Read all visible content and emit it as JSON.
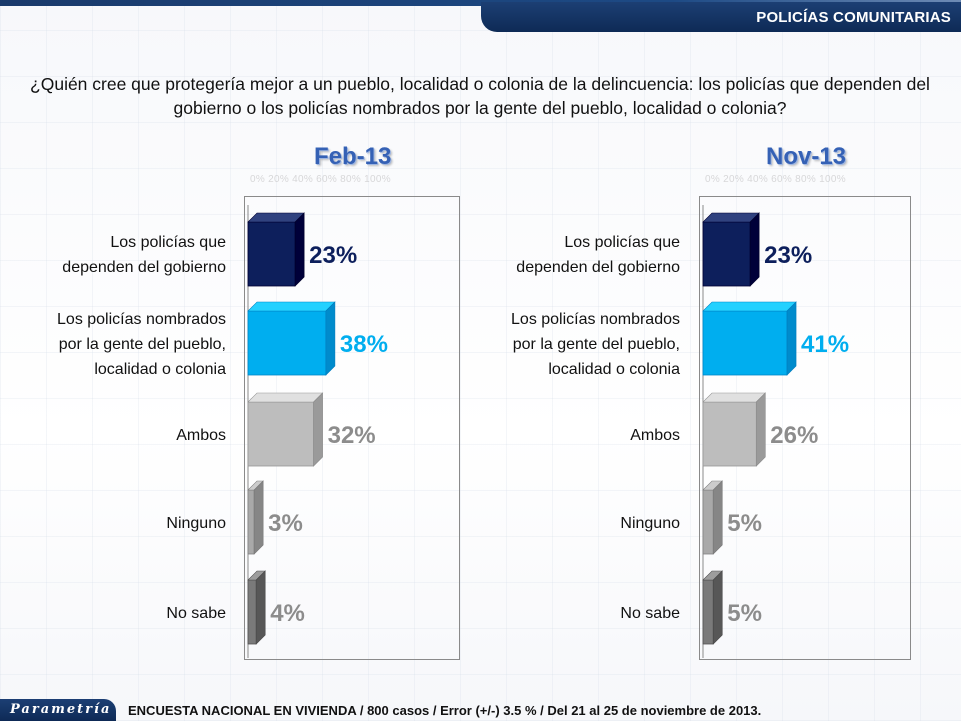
{
  "header": {
    "title": "POLICÍAS COMUNITARIAS"
  },
  "question": "¿Quién cree que protegería mejor a un pueblo, localidad o colonia de la delincuencia: los policías que dependen del gobierno o los policías nombrados por la gente del pueblo, localidad o colonia?",
  "footer": {
    "logo": "Parametría",
    "note": "ENCUESTA NACIONAL EN VIVIENDA / 800 casos / Error (+/-) 3.5 % / Del 21 al 25 de noviembre de 2013."
  },
  "axis_ticks": "0%   20%   40%   60%   80%   100%",
  "colors": {
    "dark_navy": "#0d1f5c",
    "light_blue": "#00aeef",
    "gray": "#bdbdbd",
    "mid_gray": "#a9a9a9",
    "dark_gray": "#7a7a7a"
  },
  "chart_data": [
    {
      "type": "bar",
      "title": "Feb-13",
      "categories": [
        "Los policías que dependen del gobierno",
        "Los policías nombrados por la gente del pueblo, localidad o colonia",
        "Ambos",
        "Ninguno",
        "No sabe"
      ],
      "category_lines": [
        [
          "Los policías que",
          "dependen del gobierno"
        ],
        [
          "Los policías nombrados",
          "por la gente del pueblo,",
          "localidad o colonia"
        ],
        [
          "Ambos"
        ],
        [
          "Ninguno"
        ],
        [
          "No sabe"
        ]
      ],
      "values": [
        23,
        38,
        32,
        3,
        4
      ],
      "labels": [
        "23%",
        "38%",
        "32%",
        "3%",
        "4%"
      ],
      "xlim": [
        0,
        100
      ],
      "orientation": "horizontal"
    },
    {
      "type": "bar",
      "title": "Nov-13",
      "categories": [
        "Los policías que dependen del gobierno",
        "Los policías nombrados por la gente del pueblo, localidad o colonia",
        "Ambos",
        "Ninguno",
        "No sabe"
      ],
      "category_lines": [
        [
          "Los policías que",
          "dependen del gobierno"
        ],
        [
          "Los policías nombrados",
          "por la gente del pueblo,",
          "localidad o colonia"
        ],
        [
          "Ambos"
        ],
        [
          "Ninguno"
        ],
        [
          "No sabe"
        ]
      ],
      "values": [
        23,
        41,
        26,
        5,
        5
      ],
      "labels": [
        "23%",
        "41%",
        "26%",
        "5%",
        "5%"
      ],
      "xlim": [
        0,
        100
      ],
      "orientation": "horizontal"
    }
  ]
}
